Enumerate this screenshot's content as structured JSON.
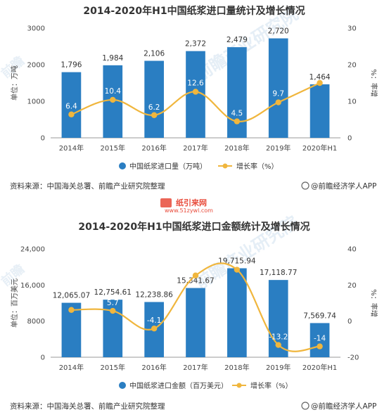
{
  "chart_data": [
    {
      "type": "bar",
      "title": "2014-2020年H1中国纸浆进口量统计及增长情况",
      "categories": [
        "2014年",
        "2015年",
        "2016年",
        "2017年",
        "2018年",
        "2019年",
        "2020年H1"
      ],
      "series": [
        {
          "name": "中国纸浆进口量（万吨）",
          "type": "bar",
          "axis": "left",
          "color": "#2a7ec2",
          "values": [
            1796,
            1984,
            2106,
            2372,
            2479,
            2720,
            1464
          ],
          "labels": [
            "1,796",
            "1,984",
            "2,106",
            "2,372",
            "2,479",
            "2,720",
            "1,464"
          ]
        },
        {
          "name": "增长率（%）",
          "type": "line",
          "axis": "right",
          "color": "#f0b63d",
          "values": [
            6.4,
            10.4,
            6.2,
            12.6,
            4.5,
            9.7,
            15
          ],
          "labels": [
            "6.4",
            "10.4",
            "6.2",
            "12.6",
            "4.5",
            "9.7",
            ""
          ]
        }
      ],
      "ylabel": "单位：万吨",
      "y2label": "%：率增",
      "ylim": [
        0,
        3000
      ],
      "yticks": [
        0,
        1000,
        2000,
        3000
      ],
      "yticklabels": [
        "0",
        "1000",
        "2000",
        "3000"
      ],
      "y2lim": [
        0,
        30
      ],
      "y2ticks": [
        0,
        10,
        20,
        30
      ],
      "y2ticklabels": [
        "0",
        "10",
        "20",
        "30"
      ],
      "legend_position": "bottom",
      "grid": false
    },
    {
      "type": "bar",
      "title": "2014-2020年H1中国纸浆进口金额统计及增长情况",
      "categories": [
        "2014年",
        "2015年",
        "2016年",
        "2017年",
        "2018年",
        "2019年",
        "2020年H1"
      ],
      "series": [
        {
          "name": "中国纸浆进口金额（百万美元）",
          "type": "bar",
          "axis": "left",
          "color": "#2a7ec2",
          "values": [
            12065.07,
            12754.61,
            12238.86,
            15341.67,
            19715.94,
            17118.77,
            7569.74
          ],
          "labels": [
            "12,065.07",
            "12,754.61",
            "12,238.86",
            "15,341.67",
            "19,715.94",
            "17,118.77",
            "7,569.74"
          ]
        },
        {
          "name": "增长率（%）",
          "type": "line",
          "axis": "right",
          "color": "#f0b63d",
          "values": [
            6.2,
            5.7,
            -4.1,
            25.3,
            28.5,
            -13.2,
            -14
          ],
          "labels": [
            "",
            "5.7",
            "-4.1",
            "25.3",
            "",
            "-13.2",
            "-14"
          ]
        }
      ],
      "ylabel": "单位：百万美元",
      "y2label": "%：率增",
      "ylim": [
        0,
        24000
      ],
      "yticks": [
        0,
        8000,
        16000,
        24000
      ],
      "yticklabels": [
        "0",
        "8000",
        "16,000",
        "24,000"
      ],
      "y2lim": [
        -20,
        40
      ],
      "y2ticks": [
        -20,
        0,
        20,
        40
      ],
      "y2ticklabels": [
        "-20",
        "0",
        "20",
        "40"
      ],
      "legend_position": "bottom",
      "grid": false
    }
  ],
  "source_text": "资料来源：中国海关总署、前瞻产业研究院整理",
  "brand_text": "@前瞻经济学人APP",
  "watermark_title": "纸引来网",
  "watermark_url": "www.51zywl.com",
  "watermark_mark": "前瞻产业研究院"
}
